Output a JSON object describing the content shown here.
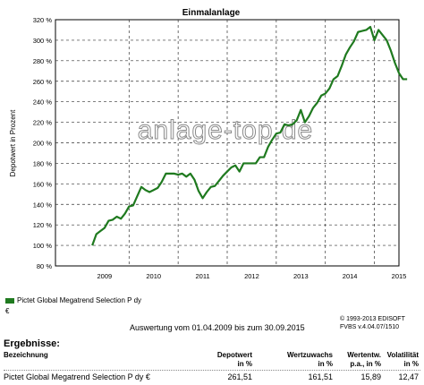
{
  "chart_data": {
    "type": "line",
    "title": "Einmalanlage",
    "ylabel": "Depotwert in Prozent",
    "xlabel": "",
    "ylim": [
      80,
      320
    ],
    "xlim": [
      2008.5,
      2015.5
    ],
    "y_ticks": [
      "80 %",
      "100 %",
      "120 %",
      "140 %",
      "160 %",
      "180 %",
      "200 %",
      "220 %",
      "240 %",
      "260 %",
      "280 %",
      "300 %",
      "320 %"
    ],
    "x_ticks": [
      "2009",
      "2010",
      "2011",
      "2012",
      "2013",
      "2014",
      "2015"
    ],
    "grid": true,
    "legend_position": "bottom-left",
    "series": [
      {
        "name": "Pictet Global Megatrend Selection P dy €",
        "color": "#1f7a1f",
        "x": [
          "2009-04",
          "2009-05",
          "2009-06",
          "2009-07",
          "2009-08",
          "2009-09",
          "2009-10",
          "2009-11",
          "2009-12",
          "2010-01",
          "2010-02",
          "2010-03",
          "2010-04",
          "2010-05",
          "2010-06",
          "2010-07",
          "2010-08",
          "2010-09",
          "2010-10",
          "2010-11",
          "2010-12",
          "2011-01",
          "2011-02",
          "2011-03",
          "2011-04",
          "2011-05",
          "2011-06",
          "2011-07",
          "2011-08",
          "2011-09",
          "2011-10",
          "2011-11",
          "2011-12",
          "2012-01",
          "2012-02",
          "2012-03",
          "2012-04",
          "2012-05",
          "2012-06",
          "2012-07",
          "2012-08",
          "2012-09",
          "2012-10",
          "2012-11",
          "2012-12",
          "2013-01",
          "2013-02",
          "2013-03",
          "2013-04",
          "2013-05",
          "2013-06",
          "2013-07",
          "2013-08",
          "2013-09",
          "2013-10",
          "2013-11",
          "2013-12",
          "2014-01",
          "2014-02",
          "2014-03",
          "2014-04",
          "2014-05",
          "2014-06",
          "2014-07",
          "2014-08",
          "2014-09",
          "2014-10",
          "2014-11",
          "2014-12",
          "2015-01",
          "2015-02",
          "2015-03",
          "2015-04",
          "2015-05",
          "2015-06",
          "2015-07",
          "2015-08",
          "2015-09"
        ],
        "values": [
          100,
          111,
          114,
          117,
          124,
          125,
          128,
          126,
          131,
          138,
          139,
          148,
          157,
          154,
          152,
          154,
          156,
          162,
          170,
          170,
          170,
          169,
          170,
          167,
          170,
          164,
          153,
          146,
          152,
          157,
          158,
          163,
          168,
          172,
          176,
          178,
          172,
          180,
          180,
          180,
          180,
          186,
          186,
          196,
          203,
          209,
          210,
          218,
          217,
          218,
          222,
          232,
          220,
          226,
          234,
          239,
          246,
          248,
          253,
          262,
          265,
          275,
          286,
          293,
          299,
          308,
          309,
          310,
          313,
          300,
          310,
          305,
          300,
          290,
          278,
          268,
          262,
          262
        ]
      }
    ]
  },
  "watermark": "anlage-top.de",
  "legend": {
    "label": "Pictet Global Megatrend Selection P dy",
    "currency": "€"
  },
  "period_text": "Auswertung vom 01.04.2009 bis zum 30.09.2015",
  "copyright": {
    "line1": "© 1993-2013 EDISOFT",
    "line2": "FVBS v.4.04.07/1510"
  },
  "results": {
    "title": "Ergebnisse:",
    "headers": {
      "name": "Bezeichnung",
      "depotwert": "Depotwert",
      "depotwert_unit": "in %",
      "wertzuwachs": "Wertzuwachs",
      "wertzuwachs_unit": "in %",
      "wertentw": "Wertentw.",
      "wertentw_unit": "p.a., in %",
      "vola": "Volatilität",
      "vola_unit": "in %"
    },
    "row": {
      "name": "Pictet Global Megatrend Selection P dy €",
      "depotwert": "261,51",
      "wertzuwachs": "161,51",
      "wertentw": "15,89",
      "vola": "12,47"
    }
  }
}
